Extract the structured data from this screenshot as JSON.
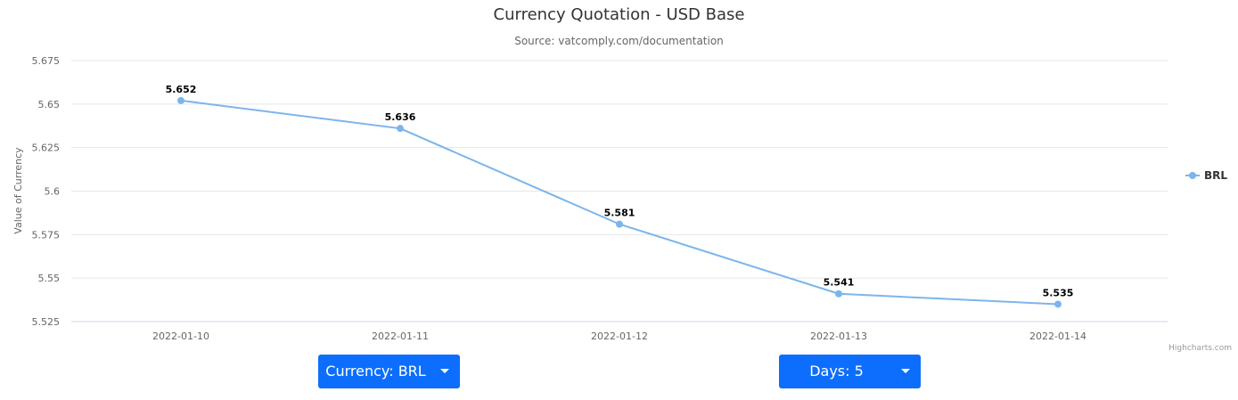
{
  "chart_data": {
    "type": "line",
    "title": "Currency Quotation - USD Base",
    "subtitle": "Source: vatcomply.com/documentation",
    "xlabel": "",
    "ylabel": "Value of Currency",
    "categories": [
      "2022-01-10",
      "2022-01-11",
      "2022-01-12",
      "2022-01-13",
      "2022-01-14"
    ],
    "series": [
      {
        "name": "BRL",
        "values": [
          5.652,
          5.636,
          5.581,
          5.541,
          5.535
        ],
        "data_labels": [
          "5.652",
          "5.636",
          "5.581",
          "5.541",
          "5.535"
        ],
        "color": "#7cb5ec"
      }
    ],
    "ylim": [
      5.525,
      5.675
    ],
    "yticks": [
      5.525,
      5.55,
      5.575,
      5.6,
      5.625,
      5.65,
      5.675
    ],
    "ytick_labels": [
      "5.525",
      "5.55",
      "5.575",
      "5.6",
      "5.625",
      "5.65",
      "5.675"
    ],
    "grid": true,
    "legend": "right",
    "credits": "Highcharts.com"
  },
  "controls": {
    "currency_label": "Currency: BRL",
    "days_label": "Days: 5",
    "button_color": "#0d6efd"
  }
}
